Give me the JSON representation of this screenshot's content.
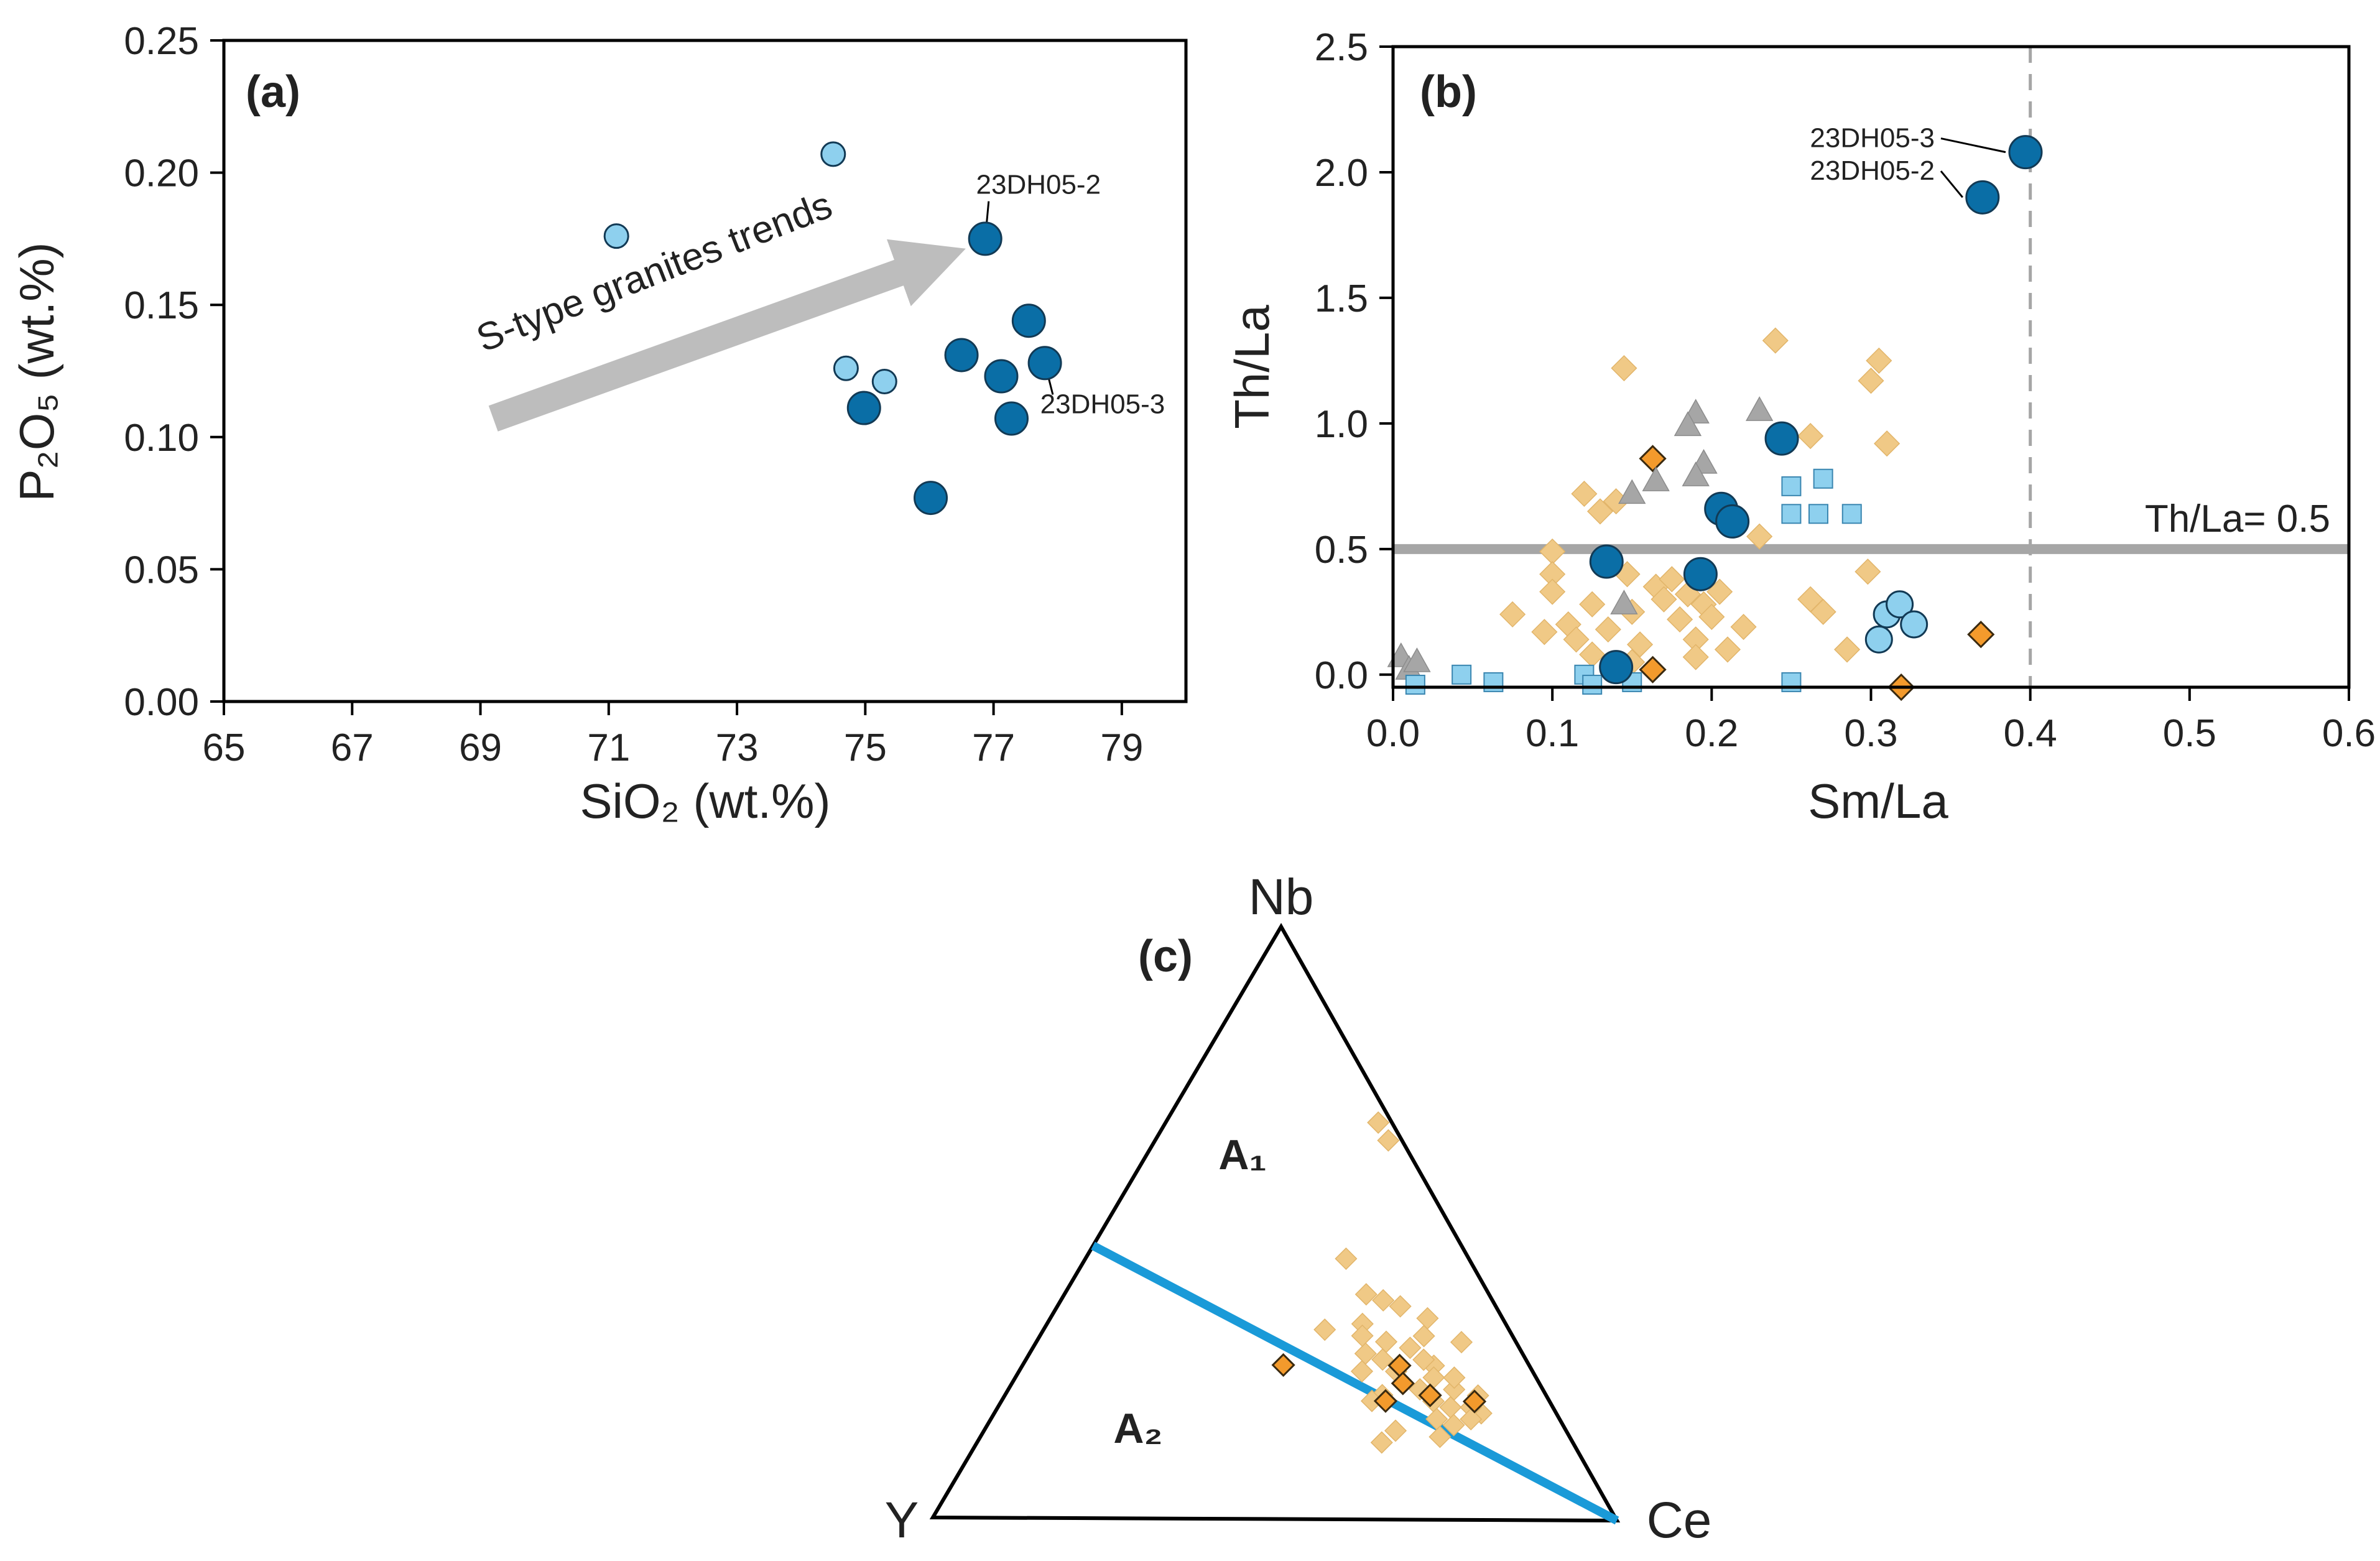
{
  "colors": {
    "dark_blue": "#0a6ea6",
    "light_blue": "#8ed0ee",
    "light_orange": "#f0c986",
    "dark_orange": "#f39a2c",
    "grey": "#a6a6a6",
    "boundary_blue": "#1a9ad8",
    "a1_label": "#1f64b4"
  },
  "chart_data": [
    {
      "panel_label": "(a)",
      "type": "scatter",
      "xlabel": "SiO₂ (wt.%)",
      "ylabel": "P₂O₅ (wt.%)",
      "xlim": [
        65,
        80
      ],
      "ylim": [
        0,
        0.25
      ],
      "xticks": [
        "65",
        "67",
        "69",
        "71",
        "73",
        "75",
        "77",
        "79"
      ],
      "yticks": [
        "0.00",
        "0.05",
        "0.10",
        "0.15",
        "0.20",
        "0.25"
      ],
      "trend_arrow": {
        "label": "S-type granites trends",
        "from": [
          69.2,
          0.107
        ],
        "to": [
          76.5,
          0.176
        ]
      },
      "annotations": [
        {
          "text": "23DH05-2",
          "point": [
            76.87,
            0.175
          ],
          "text_at": [
            77.7,
            0.192
          ]
        },
        {
          "text": "23DH05-3",
          "point": [
            77.8,
            0.128
          ],
          "text_at": [
            78.7,
            0.109
          ]
        }
      ],
      "series": [
        {
          "name": "dark blue circles",
          "marker": "circle",
          "color_key": "dark_blue",
          "points": [
            [
              76.87,
              0.175
            ],
            [
              77.55,
              0.144
            ],
            [
              76.5,
              0.131
            ],
            [
              77.8,
              0.128
            ],
            [
              77.12,
              0.123
            ],
            [
              74.98,
              0.111
            ],
            [
              77.28,
              0.107
            ],
            [
              76.02,
              0.077
            ]
          ]
        },
        {
          "name": "light blue circles",
          "marker": "circle_small",
          "color_key": "light_blue",
          "points": [
            [
              71.12,
              0.176
            ],
            [
              74.5,
              0.207
            ],
            [
              74.7,
              0.126
            ],
            [
              75.3,
              0.121
            ]
          ]
        }
      ]
    },
    {
      "panel_label": "(b)",
      "type": "scatter",
      "xlabel": "Sm/La",
      "ylabel": "Th/La",
      "xlim": [
        0.0,
        0.6
      ],
      "ylim": [
        -0.05,
        2.5
      ],
      "xticks": [
        "0.0",
        "0.1",
        "0.2",
        "0.3",
        "0.4",
        "0.5",
        "0.6"
      ],
      "yticks": [
        "0.0",
        "0.5",
        "1.0",
        "1.5",
        "2.0",
        "2.5"
      ],
      "reference_lines": [
        {
          "type": "horizontal",
          "value": 0.5,
          "label": "Th/La=  0.5",
          "color_key": "grey"
        },
        {
          "type": "vertical_dashed",
          "value": 0.4,
          "color_key": "grey"
        }
      ],
      "annotations": [
        {
          "text": "23DH05-3",
          "point": [
            0.397,
            2.08
          ],
          "text_at": [
            0.34,
            2.1
          ]
        },
        {
          "text": "23DH05-2",
          "point": [
            0.37,
            1.9
          ],
          "text_at": [
            0.34,
            1.97
          ]
        }
      ],
      "series": [
        {
          "name": "light orange diamonds",
          "marker": "diamond",
          "color_key": "light_orange",
          "points": [
            [
              0.145,
              1.22
            ],
            [
              0.24,
              1.33
            ],
            [
              0.305,
              1.25
            ],
            [
              0.3,
              1.17
            ],
            [
              0.31,
              0.92
            ],
            [
              0.262,
              0.95
            ],
            [
              0.1,
              0.49
            ],
            [
              0.1,
              0.4
            ],
            [
              0.1,
              0.33
            ],
            [
              0.12,
              0.72
            ],
            [
              0.13,
              0.65
            ],
            [
              0.14,
              0.69
            ],
            [
              0.147,
              0.4
            ],
            [
              0.075,
              0.24
            ],
            [
              0.095,
              0.17
            ],
            [
              0.11,
              0.2
            ],
            [
              0.115,
              0.14
            ],
            [
              0.125,
              0.28
            ],
            [
              0.135,
              0.18
            ],
            [
              0.15,
              0.25
            ],
            [
              0.155,
              0.12
            ],
            [
              0.165,
              0.35
            ],
            [
              0.17,
              0.3
            ],
            [
              0.175,
              0.38
            ],
            [
              0.18,
              0.22
            ],
            [
              0.185,
              0.32
            ],
            [
              0.19,
              0.14
            ],
            [
              0.195,
              0.28
            ],
            [
              0.2,
              0.23
            ],
            [
              0.205,
              0.33
            ],
            [
              0.21,
              0.1
            ],
            [
              0.22,
              0.19
            ],
            [
              0.23,
              0.55
            ],
            [
              0.262,
              0.3
            ],
            [
              0.27,
              0.25
            ],
            [
              0.285,
              0.1
            ],
            [
              0.298,
              0.41
            ],
            [
              0.19,
              0.07
            ],
            [
              0.125,
              0.08
            ],
            [
              0.15,
              0.05
            ]
          ]
        },
        {
          "name": "dark orange diamonds",
          "marker": "diamond",
          "color_key": "dark_orange",
          "points": [
            [
              0.163,
              0.86
            ],
            [
              0.163,
              0.02
            ],
            [
              0.369,
              0.16
            ],
            [
              0.319,
              -0.05
            ]
          ]
        },
        {
          "name": "grey triangles",
          "marker": "triangle",
          "color_key": "grey",
          "points": [
            [
              0.005,
              0.07
            ],
            [
              0.01,
              0.02
            ],
            [
              0.015,
              0.05
            ],
            [
              0.19,
              1.04
            ],
            [
              0.185,
              0.99
            ],
            [
              0.195,
              0.84
            ],
            [
              0.19,
              0.79
            ],
            [
              0.165,
              0.77
            ],
            [
              0.15,
              0.72
            ],
            [
              0.23,
              1.05
            ],
            [
              0.145,
              0.28
            ]
          ]
        },
        {
          "name": "light blue squares",
          "marker": "square",
          "color_key": "light_blue",
          "points": [
            [
              0.014,
              -0.04
            ],
            [
              0.043,
              0.0
            ],
            [
              0.063,
              -0.03
            ],
            [
              0.12,
              0.0
            ],
            [
              0.125,
              -0.04
            ],
            [
              0.15,
              -0.03
            ],
            [
              0.25,
              -0.03
            ],
            [
              0.25,
              0.75
            ],
            [
              0.27,
              0.78
            ],
            [
              0.25,
              0.64
            ],
            [
              0.267,
              0.64
            ],
            [
              0.288,
              0.64
            ]
          ]
        },
        {
          "name": "light blue circles",
          "marker": "circle",
          "color_key": "light_blue",
          "points": [
            [
              0.31,
              0.24
            ],
            [
              0.318,
              0.28
            ],
            [
              0.327,
              0.2
            ],
            [
              0.305,
              0.14
            ]
          ]
        },
        {
          "name": "dark blue circles",
          "marker": "circle",
          "color_key": "dark_blue",
          "points": [
            [
              0.397,
              2.08
            ],
            [
              0.37,
              1.9
            ],
            [
              0.244,
              0.94
            ],
            [
              0.206,
              0.66
            ],
            [
              0.213,
              0.61
            ],
            [
              0.134,
              0.45
            ],
            [
              0.193,
              0.4
            ],
            [
              0.14,
              0.03
            ]
          ]
        }
      ]
    },
    {
      "panel_label": "(c)",
      "type": "ternary",
      "vertices": {
        "top": "Nb",
        "left": "Y",
        "right": "Ce"
      },
      "fields": [
        {
          "name": "A₁",
          "color_key": "a1_label"
        },
        {
          "name": "A₂",
          "color_key": ""
        }
      ],
      "boundary_line": {
        "from_edge": "Y-Nb",
        "from_fraction_toward_Nb": 0.46,
        "to_vertex": "Ce",
        "color_key": "boundary_blue"
      },
      "series": [
        {
          "name": "light orange diamonds",
          "marker": "diamond",
          "color_key": "light_orange",
          "points_fraction_top_right": [
            [
              0.67,
              0.31
            ],
            [
              0.64,
              0.34
            ],
            [
              0.44,
              0.38
            ],
            [
              0.38,
              0.44
            ],
            [
              0.37,
              0.47
            ],
            [
              0.33,
              0.46
            ],
            [
              0.36,
              0.5
            ],
            [
              0.34,
              0.55
            ],
            [
              0.31,
              0.56
            ],
            [
              0.29,
              0.55
            ],
            [
              0.3,
              0.51
            ],
            [
              0.28,
              0.49
            ],
            [
              0.31,
              0.47
            ],
            [
              0.27,
              0.52
            ],
            [
              0.25,
              0.55
            ],
            [
              0.26,
              0.6
            ],
            [
              0.24,
              0.61
            ],
            [
              0.22,
              0.6
            ],
            [
              0.2,
              0.63
            ],
            [
              0.22,
              0.65
            ],
            [
              0.19,
              0.66
            ],
            [
              0.17,
              0.65
            ],
            [
              0.16,
              0.68
            ],
            [
              0.18,
              0.71
            ],
            [
              0.14,
              0.67
            ],
            [
              0.23,
              0.57
            ],
            [
              0.27,
              0.58
            ],
            [
              0.25,
              0.5
            ],
            [
              0.21,
              0.55
            ],
            [
              0.32,
              0.41
            ],
            [
              0.2,
              0.54
            ],
            [
              0.13,
              0.59
            ],
            [
              0.24,
              0.64
            ],
            [
              0.15,
              0.6
            ],
            [
              0.19,
              0.69
            ],
            [
              0.21,
              0.69
            ],
            [
              0.3,
              0.62
            ],
            [
              0.17,
              0.7
            ]
          ]
        },
        {
          "name": "dark orange diamonds",
          "marker": "diamond",
          "color_key": "dark_orange",
          "points_fraction_top_right": [
            [
              0.26,
              0.38
            ],
            [
              0.26,
              0.55
            ],
            [
              0.23,
              0.57
            ],
            [
              0.2,
              0.56
            ],
            [
              0.21,
              0.62
            ],
            [
              0.2,
              0.69
            ]
          ]
        }
      ]
    }
  ]
}
